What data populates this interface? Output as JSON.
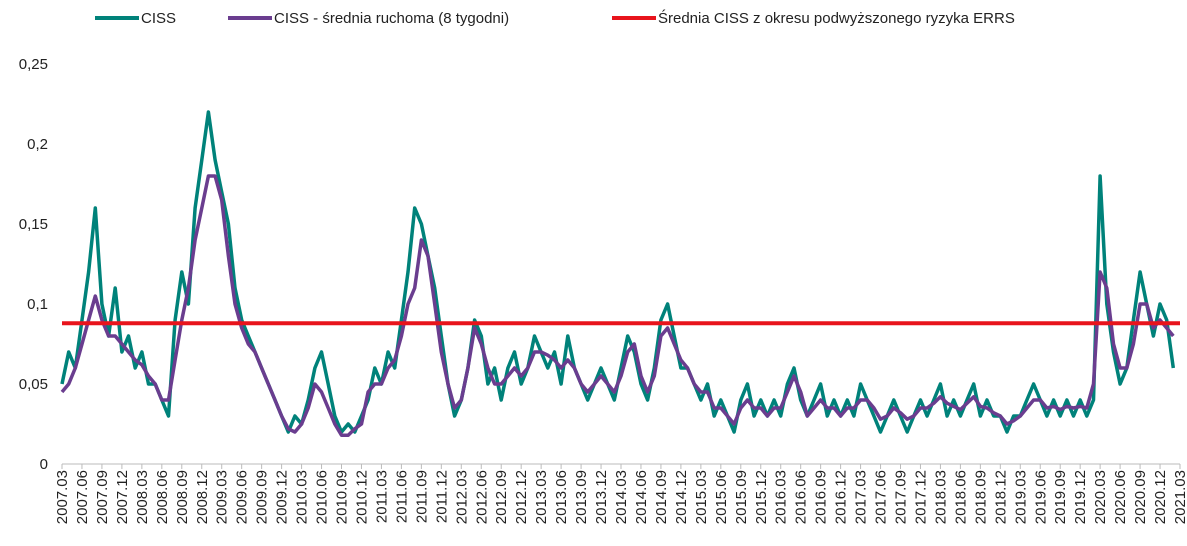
{
  "chart_data": {
    "type": "line",
    "categories": [
      "2007.03",
      null,
      null,
      "2007.06",
      null,
      null,
      "2007.09",
      null,
      null,
      "2007.12",
      null,
      null,
      "2008.03",
      null,
      null,
      "2008.06",
      null,
      null,
      "2008.09",
      null,
      null,
      "2008.12",
      null,
      null,
      "2009.03",
      null,
      null,
      "2009.06",
      null,
      null,
      "2009.09",
      null,
      null,
      "2009.12",
      null,
      null,
      "2010.03",
      null,
      null,
      "2010.06",
      null,
      null,
      "2010.09",
      null,
      null,
      "2010.12",
      null,
      null,
      "2011.03",
      null,
      null,
      "2011.06",
      null,
      null,
      "2011.09",
      null,
      null,
      "2011.12",
      null,
      null,
      "2012.03",
      null,
      null,
      "2012.06",
      null,
      null,
      "2012.09",
      null,
      null,
      "2012.12",
      null,
      null,
      "2013.03",
      null,
      null,
      "2013.06",
      null,
      null,
      "2013.09",
      null,
      null,
      "2013.12",
      null,
      null,
      "2014.03",
      null,
      null,
      "2014.06",
      null,
      null,
      "2014.09",
      null,
      null,
      "2014.12",
      null,
      null,
      "2015.03",
      null,
      null,
      "2015.06",
      null,
      null,
      "2015.09",
      null,
      null,
      "2015.12",
      null,
      null,
      "2016.03",
      null,
      null,
      "2016.06",
      null,
      null,
      "2016.09",
      null,
      null,
      "2016.12",
      null,
      null,
      "2017.03",
      null,
      null,
      "2017.06",
      null,
      null,
      "2017.09",
      null,
      null,
      "2017.12",
      null,
      null,
      "2018.03",
      null,
      null,
      "2018.06",
      null,
      null,
      "2018.09",
      null,
      null,
      "2018.12",
      null,
      null,
      "2019.03",
      null,
      null,
      "2019.06",
      null,
      null,
      "2019.09",
      null,
      null,
      "2019.12",
      null,
      null,
      "2020.03",
      null,
      null,
      "2020.06",
      null,
      null,
      "2020.09",
      null,
      null,
      "2020.12",
      null,
      null,
      "2021.03"
    ],
    "series": [
      {
        "name": "CISS",
        "color": "#00827a",
        "values": [
          0.05,
          0.07,
          0.06,
          0.09,
          0.12,
          0.16,
          0.1,
          0.08,
          0.11,
          0.07,
          0.08,
          0.06,
          0.07,
          0.05,
          0.05,
          0.04,
          0.03,
          0.09,
          0.12,
          0.1,
          0.16,
          0.19,
          0.22,
          0.19,
          0.17,
          0.15,
          0.11,
          0.09,
          0.08,
          0.07,
          0.06,
          0.05,
          0.04,
          0.03,
          0.02,
          0.03,
          0.025,
          0.04,
          0.06,
          0.07,
          0.05,
          0.03,
          0.02,
          0.025,
          0.02,
          0.03,
          0.04,
          0.06,
          0.05,
          0.07,
          0.06,
          0.09,
          0.12,
          0.16,
          0.15,
          0.13,
          0.11,
          0.08,
          0.05,
          0.03,
          0.04,
          0.06,
          0.09,
          0.08,
          0.05,
          0.06,
          0.04,
          0.06,
          0.07,
          0.05,
          0.06,
          0.08,
          0.07,
          0.06,
          0.07,
          0.05,
          0.08,
          0.06,
          0.05,
          0.04,
          0.05,
          0.06,
          0.05,
          0.04,
          0.06,
          0.08,
          0.07,
          0.05,
          0.04,
          0.06,
          0.09,
          0.1,
          0.08,
          0.06,
          0.06,
          0.05,
          0.04,
          0.05,
          0.03,
          0.04,
          0.03,
          0.02,
          0.04,
          0.05,
          0.03,
          0.04,
          0.03,
          0.04,
          0.03,
          0.05,
          0.06,
          0.04,
          0.03,
          0.04,
          0.05,
          0.03,
          0.04,
          0.03,
          0.04,
          0.03,
          0.05,
          0.04,
          0.03,
          0.02,
          0.03,
          0.04,
          0.03,
          0.02,
          0.03,
          0.04,
          0.03,
          0.04,
          0.05,
          0.03,
          0.04,
          0.03,
          0.04,
          0.05,
          0.03,
          0.04,
          0.03,
          0.03,
          0.02,
          0.03,
          0.03,
          0.04,
          0.05,
          0.04,
          0.03,
          0.04,
          0.03,
          0.04,
          0.03,
          0.04,
          0.03,
          0.04,
          0.18,
          0.1,
          0.07,
          0.05,
          0.06,
          0.09,
          0.12,
          0.1,
          0.08,
          0.1,
          0.09,
          0.06,
          null
        ]
      },
      {
        "name": "CISS - średnia ruchoma (8 tygodni)",
        "color": "#6a3d8f",
        "values": [
          0.045,
          0.05,
          0.06,
          0.075,
          0.09,
          0.105,
          0.09,
          0.08,
          0.08,
          0.075,
          0.07,
          0.065,
          0.062,
          0.055,
          0.05,
          0.04,
          0.04,
          0.065,
          0.09,
          0.11,
          0.14,
          0.16,
          0.18,
          0.18,
          0.165,
          0.13,
          0.1,
          0.085,
          0.075,
          0.07,
          0.06,
          0.05,
          0.04,
          0.03,
          0.022,
          0.02,
          0.025,
          0.035,
          0.05,
          0.045,
          0.035,
          0.025,
          0.018,
          0.018,
          0.022,
          0.025,
          0.045,
          0.05,
          0.05,
          0.06,
          0.065,
          0.08,
          0.1,
          0.11,
          0.14,
          0.13,
          0.1,
          0.07,
          0.05,
          0.035,
          0.04,
          0.06,
          0.085,
          0.075,
          0.06,
          0.05,
          0.05,
          0.055,
          0.06,
          0.055,
          0.06,
          0.07,
          0.07,
          0.068,
          0.065,
          0.06,
          0.065,
          0.06,
          0.05,
          0.045,
          0.05,
          0.055,
          0.05,
          0.045,
          0.055,
          0.07,
          0.075,
          0.055,
          0.045,
          0.055,
          0.08,
          0.085,
          0.075,
          0.065,
          0.06,
          0.05,
          0.045,
          0.045,
          0.035,
          0.035,
          0.03,
          0.025,
          0.035,
          0.04,
          0.035,
          0.035,
          0.03,
          0.035,
          0.035,
          0.045,
          0.055,
          0.045,
          0.03,
          0.035,
          0.04,
          0.035,
          0.035,
          0.03,
          0.035,
          0.035,
          0.04,
          0.04,
          0.035,
          0.028,
          0.03,
          0.035,
          0.032,
          0.028,
          0.03,
          0.035,
          0.035,
          0.038,
          0.042,
          0.038,
          0.036,
          0.034,
          0.038,
          0.042,
          0.036,
          0.035,
          0.032,
          0.03,
          0.025,
          0.027,
          0.03,
          0.035,
          0.04,
          0.04,
          0.035,
          0.036,
          0.034,
          0.036,
          0.035,
          0.036,
          0.035,
          0.05,
          0.12,
          0.11,
          0.075,
          0.06,
          0.06,
          0.075,
          0.1,
          0.1,
          0.085,
          0.09,
          0.085,
          0.08,
          null
        ]
      }
    ],
    "reference_line": {
      "name": "Średnia CISS z okresu podwyższonego ryzyka ERRS",
      "color": "#e8141c",
      "value": 0.088
    },
    "ylim": [
      0,
      0.25
    ],
    "yticks": [
      0,
      {
        "value": 0.05,
        "label": "0,05"
      },
      {
        "value": 0.1,
        "label": "0,1"
      },
      {
        "value": 0.15,
        "label": "0,15"
      },
      {
        "value": 0.2,
        "label": "0,2"
      },
      {
        "value": 0.25,
        "label": "0,25"
      }
    ],
    "grid": false
  }
}
